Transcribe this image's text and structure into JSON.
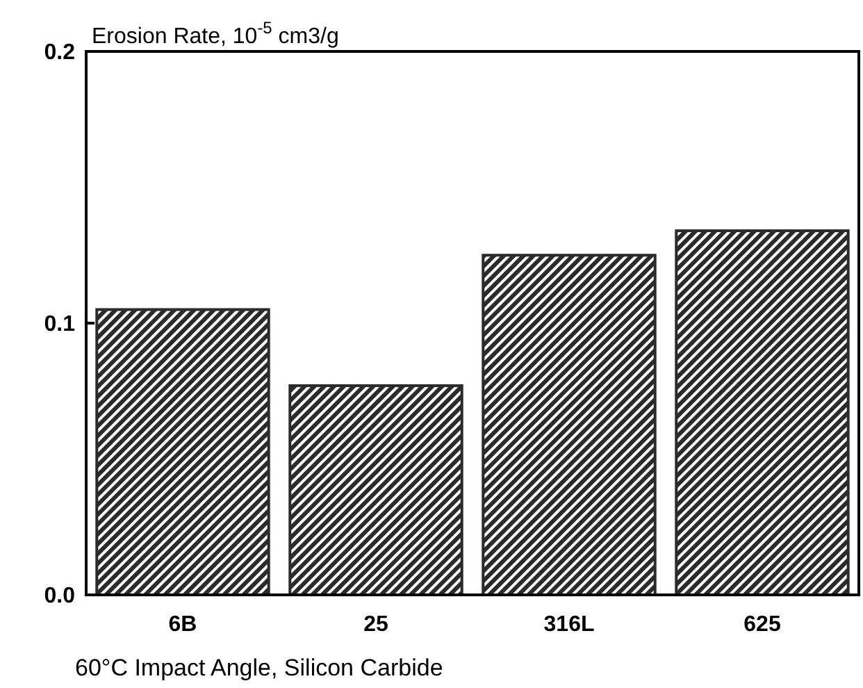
{
  "chart_data": {
    "type": "bar",
    "ylabel": "Erosion Rate, 10$^{-5}$ cm3/g",
    "xlabel": "60°C Impact Angle, Silicon Carbide",
    "categories": [
      "6B",
      "25",
      "316L",
      "625"
    ],
    "values": [
      0.105,
      0.077,
      0.125,
      0.134
    ],
    "color": "#2b2b2b",
    "ylim": [
      0,
      0.2
    ],
    "yticks": [
      {
        "value": 0,
        "label": "0.0"
      },
      0.1,
      0.2
    ],
    "grid": false
  }
}
